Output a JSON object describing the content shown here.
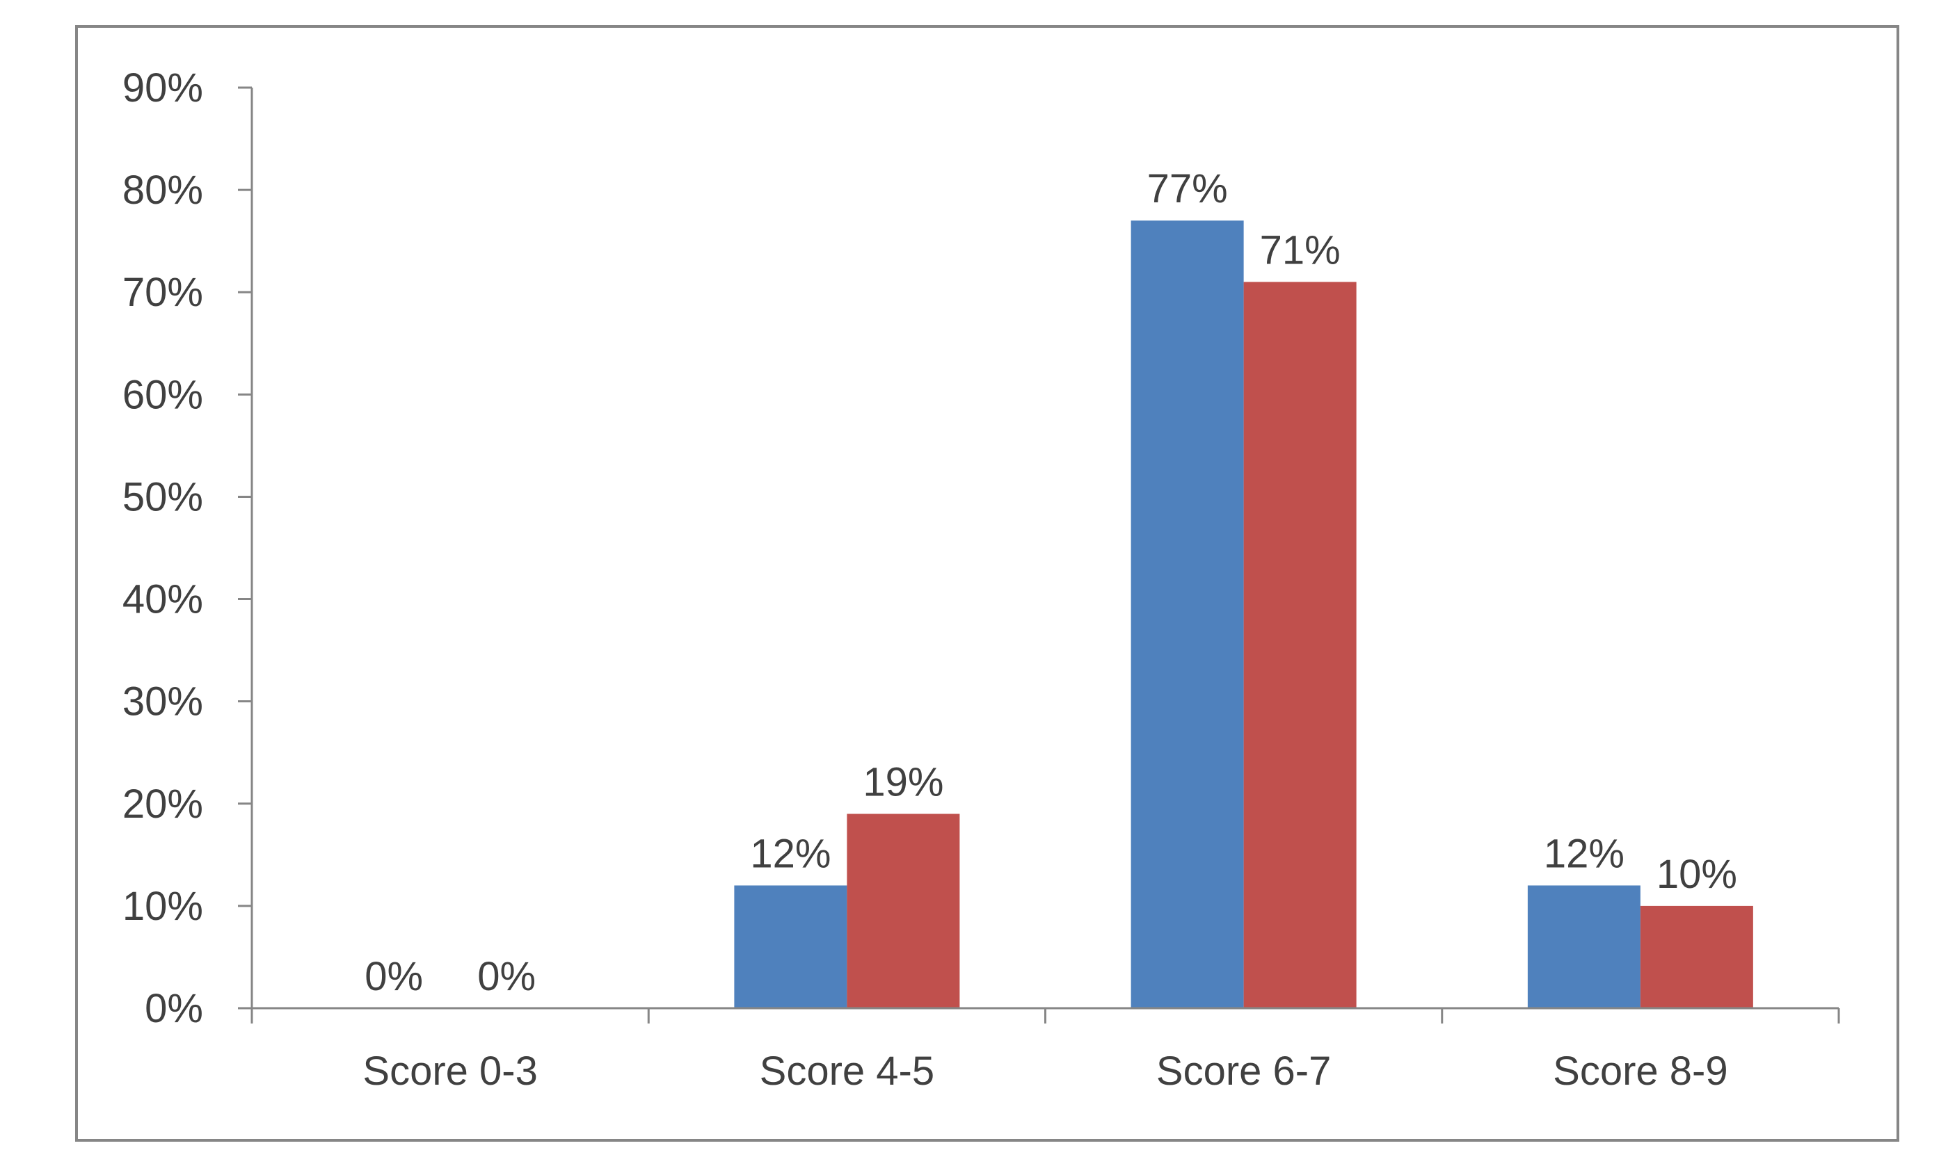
{
  "chart_data": {
    "type": "bar",
    "categories": [
      "Score 0-3",
      "Score 4-5",
      "Score 6-7",
      "Score 8-9"
    ],
    "series": [
      {
        "values": [
          0,
          12,
          77,
          12
        ],
        "data_labels": [
          "0%",
          "12%",
          "77%",
          "12%"
        ]
      },
      {
        "values": [
          0,
          19,
          71,
          10
        ],
        "data_labels": [
          "0%",
          "19%",
          "71%",
          "10%"
        ]
      }
    ],
    "y_ticks": [
      "0%",
      "10%",
      "20%",
      "30%",
      "40%",
      "50%",
      "60%",
      "70%",
      "80%",
      "90%"
    ],
    "ylim": [
      0,
      90
    ],
    "title": "",
    "xlabel": "",
    "ylabel": "",
    "grid": false,
    "legend": "none"
  },
  "colors": {
    "series_1": "#4f81bd",
    "series_2": "#c0504d",
    "axis": "#868686",
    "frame": "#868686",
    "text": "#404040"
  }
}
